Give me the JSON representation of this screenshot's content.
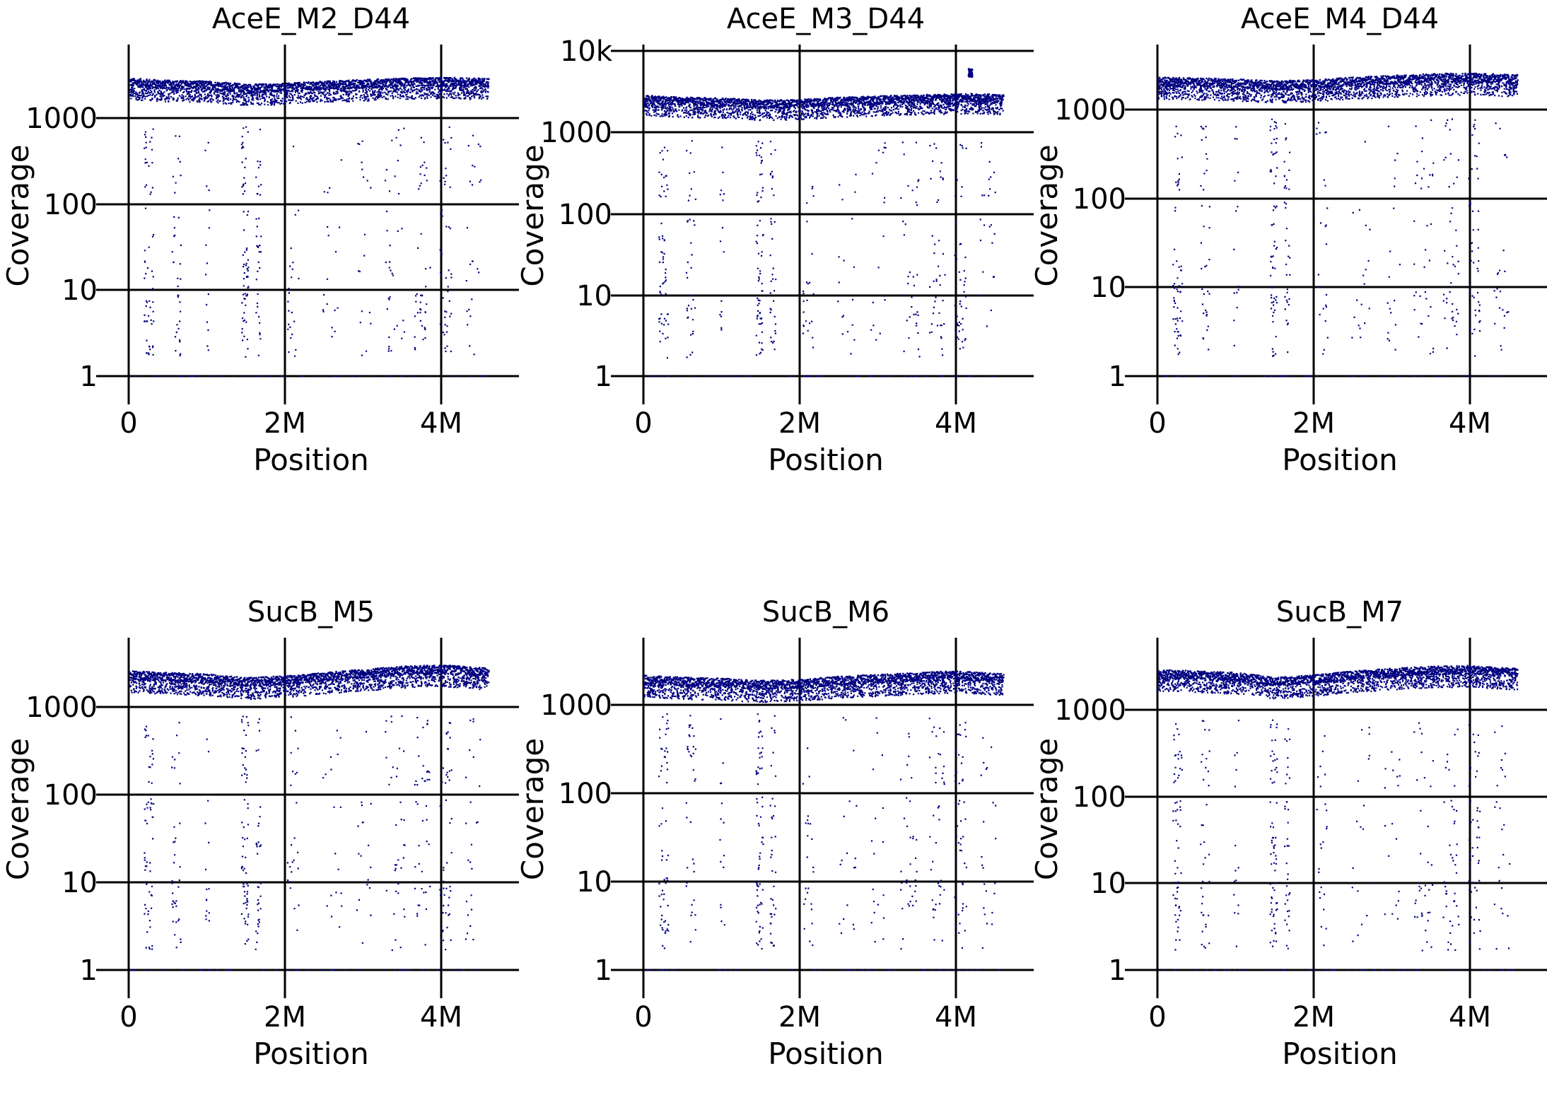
{
  "chart_data": [
    {
      "type": "scatter",
      "title": "AceE_M2_D44",
      "xlabel": "Position",
      "ylabel": "Coverage",
      "x_ticks": [
        "0",
        "2M",
        "4M"
      ],
      "y_ticks": [
        "1",
        "10",
        "100",
        "1000"
      ],
      "xlim": [
        0,
        4700000
      ],
      "ylim": [
        1,
        4500
      ],
      "y_scale": "log",
      "grid": true,
      "point_color": "#000080",
      "baseline": [
        [
          0,
          2700
        ],
        [
          500000,
          2550
        ],
        [
          1000000,
          2500
        ],
        [
          1500000,
          2300
        ],
        [
          2000000,
          2350
        ],
        [
          2500000,
          2500
        ],
        [
          3000000,
          2600
        ],
        [
          3500000,
          2700
        ],
        [
          4000000,
          2750
        ],
        [
          4500000,
          2700
        ]
      ],
      "dropouts": {
        "clusters": [
          [
            250000,
            120000,
            20
          ],
          [
            600000,
            120000,
            12
          ],
          [
            1000000,
            60000,
            5
          ],
          [
            1480000,
            90000,
            22
          ],
          [
            1650000,
            70000,
            12
          ],
          [
            2100000,
            150000,
            8
          ],
          [
            2600000,
            250000,
            6
          ],
          [
            3000000,
            200000,
            6
          ],
          [
            3400000,
            250000,
            12
          ],
          [
            3750000,
            200000,
            14
          ],
          [
            4050000,
            150000,
            16
          ],
          [
            4400000,
            200000,
            8
          ]
        ],
        "low_values": [
          2,
          3,
          4,
          5,
          6,
          8,
          10,
          15,
          20,
          30,
          50,
          80,
          150,
          200,
          300,
          500,
          700
        ]
      }
    },
    {
      "type": "scatter",
      "title": "AceE_M3_D44",
      "xlabel": "Position",
      "ylabel": "Coverage",
      "x_ticks": [
        "0",
        "2M",
        "4M"
      ],
      "y_ticks": [
        "1",
        "10",
        "100",
        "1000",
        "10k"
      ],
      "xlim": [
        0,
        4700000
      ],
      "ylim": [
        1,
        10000
      ],
      "y_scale": "log",
      "grid": true,
      "point_color": "#000080",
      "baseline": [
        [
          0,
          2650
        ],
        [
          500000,
          2500
        ],
        [
          1000000,
          2450
        ],
        [
          1500000,
          2300
        ],
        [
          2000000,
          2350
        ],
        [
          2500000,
          2500
        ],
        [
          3000000,
          2600
        ],
        [
          3500000,
          2700
        ],
        [
          4000000,
          2750
        ],
        [
          4150000,
          2750
        ],
        [
          4200000,
          2800
        ],
        [
          4500000,
          2700
        ]
      ],
      "spike": {
        "x": [
          4150000,
          4200000
        ],
        "y": [
          4800,
          6200
        ]
      },
      "dropouts": {
        "clusters": [
          [
            250000,
            120000,
            20
          ],
          [
            600000,
            120000,
            12
          ],
          [
            1000000,
            60000,
            5
          ],
          [
            1480000,
            90000,
            22
          ],
          [
            1650000,
            70000,
            12
          ],
          [
            2100000,
            150000,
            8
          ],
          [
            2600000,
            250000,
            6
          ],
          [
            3000000,
            200000,
            6
          ],
          [
            3400000,
            250000,
            12
          ],
          [
            3750000,
            200000,
            14
          ],
          [
            4050000,
            150000,
            16
          ],
          [
            4400000,
            200000,
            8
          ]
        ],
        "low_values": [
          2,
          3,
          4,
          5,
          6,
          8,
          10,
          15,
          20,
          30,
          50,
          80,
          150,
          200,
          300,
          500,
          700
        ]
      }
    },
    {
      "type": "scatter",
      "title": "AceE_M4_D44",
      "xlabel": "Position",
      "ylabel": "Coverage",
      "x_ticks": [
        "0",
        "2M",
        "4M"
      ],
      "y_ticks": [
        "1",
        "10",
        "100",
        "1000"
      ],
      "xlim": [
        0,
        4700000
      ],
      "ylim": [
        1,
        4500
      ],
      "y_scale": "log",
      "grid": true,
      "point_color": "#000080",
      "baseline": [
        [
          0,
          2150
        ],
        [
          500000,
          2100
        ],
        [
          1000000,
          2050
        ],
        [
          1500000,
          1950
        ],
        [
          2000000,
          2000
        ],
        [
          2500000,
          2150
        ],
        [
          3000000,
          2250
        ],
        [
          3500000,
          2350
        ],
        [
          4000000,
          2400
        ],
        [
          4500000,
          2300
        ]
      ],
      "dropouts": {
        "clusters": [
          [
            250000,
            120000,
            20
          ],
          [
            600000,
            120000,
            12
          ],
          [
            1000000,
            60000,
            5
          ],
          [
            1480000,
            90000,
            22
          ],
          [
            1650000,
            70000,
            12
          ],
          [
            2100000,
            150000,
            8
          ],
          [
            2600000,
            250000,
            6
          ],
          [
            3000000,
            200000,
            6
          ],
          [
            3400000,
            250000,
            12
          ],
          [
            3750000,
            200000,
            14
          ],
          [
            4050000,
            150000,
            16
          ],
          [
            4400000,
            200000,
            8
          ]
        ],
        "low_values": [
          2,
          3,
          4,
          5,
          6,
          8,
          10,
          15,
          20,
          30,
          50,
          80,
          150,
          200,
          300,
          500,
          700
        ]
      }
    },
    {
      "type": "scatter",
      "title": "SucB_M5",
      "xlabel": "Position",
      "ylabel": "Coverage",
      "x_ticks": [
        "0",
        "2M",
        "4M"
      ],
      "y_ticks": [
        "1",
        "10",
        "100",
        "1000"
      ],
      "xlim": [
        0,
        4700000
      ],
      "ylim": [
        1,
        4500
      ],
      "y_scale": "log",
      "grid": true,
      "point_color": "#000080",
      "baseline": [
        [
          0,
          2400
        ],
        [
          500000,
          2300
        ],
        [
          1000000,
          2200
        ],
        [
          1500000,
          2000
        ],
        [
          2000000,
          2100
        ],
        [
          2500000,
          2300
        ],
        [
          3000000,
          2500
        ],
        [
          3500000,
          2700
        ],
        [
          4000000,
          2800
        ],
        [
          4500000,
          2600
        ]
      ],
      "dropouts": {
        "clusters": [
          [
            250000,
            120000,
            20
          ],
          [
            600000,
            120000,
            12
          ],
          [
            1000000,
            60000,
            5
          ],
          [
            1480000,
            90000,
            22
          ],
          [
            1650000,
            70000,
            12
          ],
          [
            2100000,
            150000,
            8
          ],
          [
            2600000,
            250000,
            6
          ],
          [
            3000000,
            200000,
            6
          ],
          [
            3400000,
            250000,
            12
          ],
          [
            3750000,
            200000,
            14
          ],
          [
            4050000,
            150000,
            16
          ],
          [
            4400000,
            200000,
            8
          ]
        ],
        "low_values": [
          2,
          3,
          4,
          5,
          6,
          8,
          10,
          15,
          20,
          30,
          50,
          80,
          150,
          200,
          300,
          500,
          700
        ]
      }
    },
    {
      "type": "scatter",
      "title": "SucB_M6",
      "xlabel": "Position",
      "ylabel": "Coverage",
      "x_ticks": [
        "0",
        "2M",
        "4M"
      ],
      "y_ticks": [
        "1",
        "10",
        "100",
        "1000"
      ],
      "xlim": [
        0,
        4700000
      ],
      "ylim": [
        1,
        4500
      ],
      "y_scale": "log",
      "grid": true,
      "point_color": "#000080",
      "baseline": [
        [
          0,
          2000
        ],
        [
          500000,
          1900
        ],
        [
          1000000,
          1850
        ],
        [
          1500000,
          1750
        ],
        [
          2000000,
          1800
        ],
        [
          2500000,
          1950
        ],
        [
          3000000,
          2050
        ],
        [
          3500000,
          2150
        ],
        [
          4000000,
          2250
        ],
        [
          4500000,
          2100
        ]
      ],
      "dropouts": {
        "clusters": [
          [
            250000,
            120000,
            20
          ],
          [
            600000,
            120000,
            12
          ],
          [
            1000000,
            60000,
            5
          ],
          [
            1480000,
            90000,
            22
          ],
          [
            1650000,
            70000,
            12
          ],
          [
            2100000,
            150000,
            8
          ],
          [
            2600000,
            250000,
            6
          ],
          [
            3000000,
            200000,
            6
          ],
          [
            3400000,
            250000,
            12
          ],
          [
            3750000,
            200000,
            14
          ],
          [
            4050000,
            150000,
            16
          ],
          [
            4400000,
            200000,
            8
          ]
        ],
        "low_values": [
          2,
          3,
          4,
          5,
          6,
          8,
          10,
          15,
          20,
          30,
          50,
          80,
          150,
          200,
          300,
          500,
          700
        ]
      }
    },
    {
      "type": "scatter",
      "title": "SucB_M7",
      "xlabel": "Position",
      "ylabel": "Coverage",
      "x_ticks": [
        "0",
        "2M",
        "4M"
      ],
      "y_ticks": [
        "1",
        "10",
        "100",
        "1000"
      ],
      "xlim": [
        0,
        4700000
      ],
      "ylim": [
        1,
        4500
      ],
      "y_scale": "log",
      "grid": true,
      "point_color": "#000080",
      "baseline": [
        [
          0,
          2700
        ],
        [
          500000,
          2600
        ],
        [
          1000000,
          2500
        ],
        [
          1500000,
          2200
        ],
        [
          2000000,
          2350
        ],
        [
          2500000,
          2600
        ],
        [
          3000000,
          2800
        ],
        [
          3500000,
          2950
        ],
        [
          4000000,
          3000
        ],
        [
          4500000,
          2800
        ]
      ],
      "dropouts": {
        "clusters": [
          [
            250000,
            120000,
            20
          ],
          [
            600000,
            120000,
            12
          ],
          [
            1000000,
            60000,
            5
          ],
          [
            1480000,
            90000,
            22
          ],
          [
            1650000,
            70000,
            12
          ],
          [
            2100000,
            150000,
            8
          ],
          [
            2600000,
            250000,
            6
          ],
          [
            3000000,
            200000,
            6
          ],
          [
            3400000,
            250000,
            12
          ],
          [
            3750000,
            200000,
            14
          ],
          [
            4050000,
            150000,
            16
          ],
          [
            4400000,
            200000,
            8
          ]
        ],
        "low_values": [
          2,
          3,
          4,
          5,
          6,
          8,
          10,
          15,
          20,
          30,
          50,
          80,
          150,
          200,
          300,
          500,
          700
        ]
      }
    }
  ]
}
